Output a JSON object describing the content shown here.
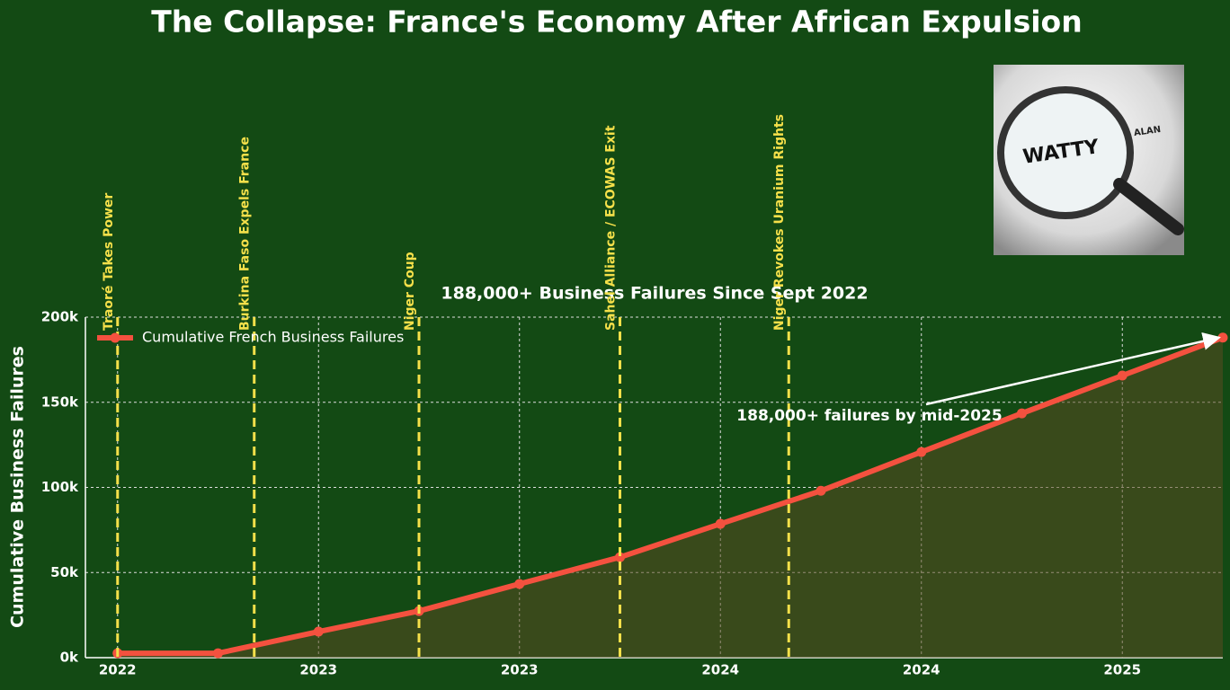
{
  "chart_data": {
    "type": "line",
    "title": "The Collapse: France's Economy After African Expulsion",
    "subtitle": "188,000+ Business Failures Since Sept 2022",
    "ylabel": "Cumulative Business Failures",
    "x": [
      2022.0,
      2022.25,
      2022.5,
      2022.75,
      2023.0,
      2023.25,
      2023.5,
      2023.75,
      2024.0,
      2024.25,
      2024.5,
      2024.75
    ],
    "series": [
      {
        "name": "Cumulative French Business Failures",
        "color": "#f4513f",
        "values": [
          2600,
          2600,
          15300,
          27400,
          43300,
          59000,
          78600,
          98000,
          120800,
          143500,
          165700,
          188000
        ]
      }
    ],
    "xlim": [
      2021.92,
      2024.75
    ],
    "xticks": [
      {
        "value": 2022.0,
        "label": "2022"
      },
      {
        "value": 2022.5,
        "label": "2023"
      },
      {
        "value": 2023.0,
        "label": "2023"
      },
      {
        "value": 2023.5,
        "label": "2024"
      },
      {
        "value": 2024.0,
        "label": "2024"
      },
      {
        "value": 2024.5,
        "label": "2025"
      }
    ],
    "ylim": [
      0,
      200000
    ],
    "yticks": [
      {
        "value": 0,
        "label": "0k"
      },
      {
        "value": 50000,
        "label": "50k"
      },
      {
        "value": 100000,
        "label": "100k"
      },
      {
        "value": 150000,
        "label": "150k"
      },
      {
        "value": 200000,
        "label": "200k"
      }
    ],
    "grid": true,
    "legend": "upper left",
    "events": [
      {
        "x": 2022.0,
        "label": "Traoré Takes Power"
      },
      {
        "x": 2022.34,
        "label": "Burkina Faso Expels France"
      },
      {
        "x": 2022.75,
        "label": "Niger Coup"
      },
      {
        "x": 2023.25,
        "label": "Sahel Alliance / ECOWAS Exit"
      },
      {
        "x": 2023.67,
        "label": "Niger Revokes Uranium Rights"
      }
    ],
    "event_color": "#f5e04a",
    "annotation": "188,000+ failures by mid-2025",
    "logo": {
      "text": "WATTY",
      "subtext": "ALAN"
    }
  }
}
